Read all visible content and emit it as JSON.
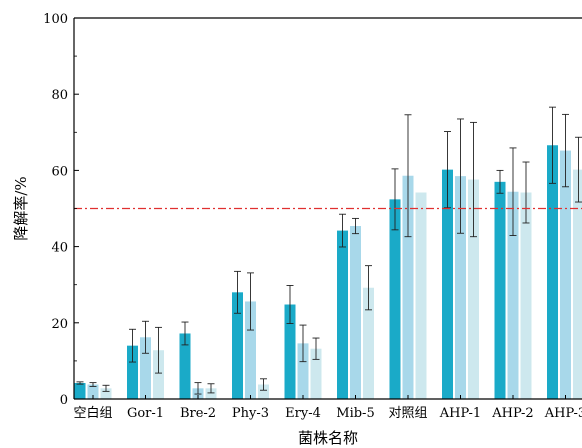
{
  "chart_data": {
    "type": "bar",
    "title": "",
    "xlabel": "菌株名称",
    "ylabel": "降解率/%",
    "ylim": [
      0,
      100
    ],
    "yticks": [
      0,
      20,
      40,
      60,
      80,
      100
    ],
    "grid": false,
    "reference_line": {
      "y": 50,
      "style": "dash-dot",
      "color": "#e03030"
    },
    "categories": [
      "空白组",
      "Gor-1",
      "Bre-2",
      "Phy-3",
      "Ery-4",
      "Mib-5",
      "对照组",
      "AHP-1",
      "AHP-2",
      "AHP-3"
    ],
    "series": [
      {
        "values": [
          4.2,
          14.0,
          17.2,
          28.0,
          24.8,
          44.2,
          52.4,
          60.2,
          57.0,
          66.6
        ],
        "errors": [
          0.3,
          4.3,
          3.0,
          5.5,
          5.0,
          4.3,
          8.0,
          10.0,
          3.0,
          10.0
        ]
      },
      {
        "values": [
          3.8,
          16.2,
          2.8,
          25.6,
          14.6,
          45.4,
          58.6,
          58.5,
          54.4,
          65.2
        ],
        "errors": [
          0.5,
          4.2,
          1.5,
          7.5,
          4.8,
          2.0,
          16.0,
          15.0,
          11.5,
          9.5
        ]
      },
      {
        "values": [
          2.8,
          12.8,
          2.8,
          3.8,
          13.2,
          29.2,
          54.2,
          57.6,
          54.2,
          60.2
        ],
        "errors": [
          0.8,
          6.0,
          1.2,
          1.5,
          2.8,
          5.8,
          0,
          15.0,
          8.0,
          8.5
        ]
      }
    ],
    "colors": [
      "#1aaac8",
      "#a8d8ea",
      "#cde8ee"
    ]
  }
}
